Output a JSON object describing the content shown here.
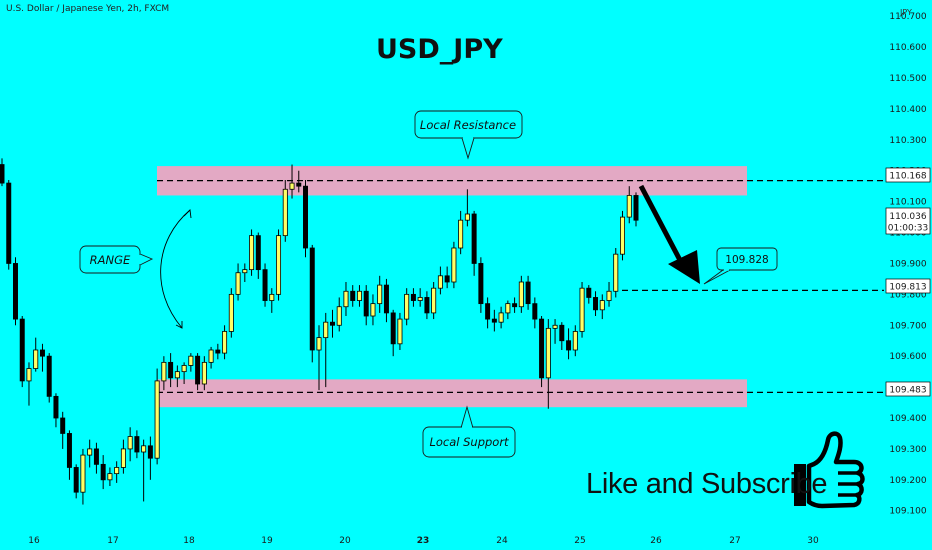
{
  "header": {
    "symbol_desc": "U.S. Dollar / Japanese Yen, 2h, FXCM",
    "currency": "JPY"
  },
  "title": "USD_JPY",
  "subscribe_text": "Like and Subscribe",
  "annotations": {
    "resistance_label": "Local Resistance",
    "support_label": "Local Support",
    "range_label": "RANGE",
    "target_label": "109.828"
  },
  "colors": {
    "background": "#00FFFF",
    "zone": "#E3A9C4",
    "candle_bull": "#FFFF66",
    "candle_bear": "#000000",
    "price_box": "#FFFFFF"
  },
  "price_axis": {
    "ticks": [
      "110.700",
      "110.600",
      "110.500",
      "110.400",
      "110.300",
      "110.200",
      "110.100",
      "110.000",
      "109.900",
      "109.800",
      "109.700",
      "109.600",
      "109.500",
      "109.400",
      "109.300",
      "109.200",
      "109.100"
    ],
    "labels": {
      "resistance": "110.168",
      "current": "110.036",
      "countdown": "01:00:33",
      "mid_level": "109.813",
      "support": "109.483"
    }
  },
  "time_axis": {
    "ticks": [
      "16",
      "17",
      "18",
      "19",
      "20",
      "23",
      "24",
      "25",
      "26",
      "27",
      "30"
    ],
    "bold": [
      "23"
    ]
  },
  "chart_data": {
    "type": "candlestick",
    "title": "USD_JPY",
    "symbol": "U.S. Dollar / Japanese Yen, 2h, FXCM",
    "ylim": [
      109.07,
      110.72
    ],
    "zones": {
      "resistance": [
        110.12,
        110.215
      ],
      "support": [
        109.435,
        109.525
      ]
    },
    "levels": {
      "resistance": 110.168,
      "support": 109.483,
      "mid": 109.813,
      "target": 109.828,
      "current": 110.036
    },
    "candles": [
      {
        "o": 110.22,
        "h": 110.24,
        "l": 110.15,
        "c": 110.16
      },
      {
        "o": 110.16,
        "h": 110.17,
        "l": 109.88,
        "c": 109.9
      },
      {
        "o": 109.9,
        "h": 109.92,
        "l": 109.7,
        "c": 109.72
      },
      {
        "o": 109.72,
        "h": 109.73,
        "l": 109.5,
        "c": 109.52
      },
      {
        "o": 109.52,
        "h": 109.58,
        "l": 109.44,
        "c": 109.56
      },
      {
        "o": 109.56,
        "h": 109.66,
        "l": 109.55,
        "c": 109.62
      },
      {
        "o": 109.62,
        "h": 109.64,
        "l": 109.55,
        "c": 109.6
      },
      {
        "o": 109.6,
        "h": 109.61,
        "l": 109.45,
        "c": 109.47
      },
      {
        "o": 109.47,
        "h": 109.48,
        "l": 109.37,
        "c": 109.4
      },
      {
        "o": 109.4,
        "h": 109.42,
        "l": 109.3,
        "c": 109.35
      },
      {
        "o": 109.35,
        "h": 109.36,
        "l": 109.2,
        "c": 109.24
      },
      {
        "o": 109.24,
        "h": 109.25,
        "l": 109.14,
        "c": 109.16
      },
      {
        "o": 109.16,
        "h": 109.3,
        "l": 109.12,
        "c": 109.28
      },
      {
        "o": 109.28,
        "h": 109.33,
        "l": 109.24,
        "c": 109.3
      },
      {
        "o": 109.3,
        "h": 109.32,
        "l": 109.22,
        "c": 109.25
      },
      {
        "o": 109.25,
        "h": 109.28,
        "l": 109.17,
        "c": 109.2
      },
      {
        "o": 109.2,
        "h": 109.24,
        "l": 109.18,
        "c": 109.22
      },
      {
        "o": 109.22,
        "h": 109.26,
        "l": 109.19,
        "c": 109.24
      },
      {
        "o": 109.24,
        "h": 109.33,
        "l": 109.22,
        "c": 109.3
      },
      {
        "o": 109.3,
        "h": 109.37,
        "l": 109.26,
        "c": 109.34
      },
      {
        "o": 109.34,
        "h": 109.36,
        "l": 109.27,
        "c": 109.29
      },
      {
        "o": 109.29,
        "h": 109.33,
        "l": 109.13,
        "c": 109.31
      },
      {
        "o": 109.31,
        "h": 109.34,
        "l": 109.2,
        "c": 109.27
      },
      {
        "o": 109.27,
        "h": 109.56,
        "l": 109.25,
        "c": 109.52
      },
      {
        "o": 109.52,
        "h": 109.6,
        "l": 109.49,
        "c": 109.58
      },
      {
        "o": 109.58,
        "h": 109.61,
        "l": 109.5,
        "c": 109.53
      },
      {
        "o": 109.53,
        "h": 109.57,
        "l": 109.5,
        "c": 109.55
      },
      {
        "o": 109.55,
        "h": 109.58,
        "l": 109.51,
        "c": 109.57
      },
      {
        "o": 109.57,
        "h": 109.61,
        "l": 109.55,
        "c": 109.6
      },
      {
        "o": 109.6,
        "h": 109.61,
        "l": 109.49,
        "c": 109.51
      },
      {
        "o": 109.51,
        "h": 109.6,
        "l": 109.49,
        "c": 109.58
      },
      {
        "o": 109.58,
        "h": 109.63,
        "l": 109.56,
        "c": 109.62
      },
      {
        "o": 109.62,
        "h": 109.64,
        "l": 109.59,
        "c": 109.61
      },
      {
        "o": 109.61,
        "h": 109.7,
        "l": 109.59,
        "c": 109.68
      },
      {
        "o": 109.68,
        "h": 109.82,
        "l": 109.66,
        "c": 109.8
      },
      {
        "o": 109.8,
        "h": 109.9,
        "l": 109.78,
        "c": 109.87
      },
      {
        "o": 109.87,
        "h": 109.9,
        "l": 109.84,
        "c": 109.88
      },
      {
        "o": 109.88,
        "h": 110.01,
        "l": 109.86,
        "c": 109.99
      },
      {
        "o": 109.99,
        "h": 110.0,
        "l": 109.85,
        "c": 109.88
      },
      {
        "o": 109.88,
        "h": 109.9,
        "l": 109.76,
        "c": 109.78
      },
      {
        "o": 109.78,
        "h": 109.82,
        "l": 109.74,
        "c": 109.8
      },
      {
        "o": 109.8,
        "h": 110.01,
        "l": 109.78,
        "c": 109.99
      },
      {
        "o": 109.99,
        "h": 110.17,
        "l": 109.97,
        "c": 110.14
      },
      {
        "o": 110.14,
        "h": 110.22,
        "l": 110.11,
        "c": 110.16
      },
      {
        "o": 110.16,
        "h": 110.2,
        "l": 110.13,
        "c": 110.15
      },
      {
        "o": 110.15,
        "h": 110.17,
        "l": 109.92,
        "c": 109.95
      },
      {
        "o": 109.95,
        "h": 109.96,
        "l": 109.58,
        "c": 109.62
      },
      {
        "o": 109.62,
        "h": 109.7,
        "l": 109.49,
        "c": 109.66
      },
      {
        "o": 109.66,
        "h": 109.74,
        "l": 109.5,
        "c": 109.71
      },
      {
        "o": 109.71,
        "h": 109.75,
        "l": 109.66,
        "c": 109.7
      },
      {
        "o": 109.7,
        "h": 109.79,
        "l": 109.68,
        "c": 109.76
      },
      {
        "o": 109.76,
        "h": 109.84,
        "l": 109.73,
        "c": 109.81
      },
      {
        "o": 109.81,
        "h": 109.83,
        "l": 109.76,
        "c": 109.78
      },
      {
        "o": 109.78,
        "h": 109.83,
        "l": 109.76,
        "c": 109.81
      },
      {
        "o": 109.81,
        "h": 109.83,
        "l": 109.7,
        "c": 109.73
      },
      {
        "o": 109.73,
        "h": 109.8,
        "l": 109.7,
        "c": 109.77
      },
      {
        "o": 109.77,
        "h": 109.86,
        "l": 109.74,
        "c": 109.83
      },
      {
        "o": 109.83,
        "h": 109.85,
        "l": 109.71,
        "c": 109.74
      },
      {
        "o": 109.74,
        "h": 109.75,
        "l": 109.6,
        "c": 109.64
      },
      {
        "o": 109.64,
        "h": 109.74,
        "l": 109.62,
        "c": 109.72
      },
      {
        "o": 109.72,
        "h": 109.82,
        "l": 109.7,
        "c": 109.8
      },
      {
        "o": 109.8,
        "h": 109.82,
        "l": 109.76,
        "c": 109.78
      },
      {
        "o": 109.78,
        "h": 109.82,
        "l": 109.76,
        "c": 109.79
      },
      {
        "o": 109.79,
        "h": 109.81,
        "l": 109.72,
        "c": 109.74
      },
      {
        "o": 109.74,
        "h": 109.84,
        "l": 109.72,
        "c": 109.82
      },
      {
        "o": 109.82,
        "h": 109.89,
        "l": 109.8,
        "c": 109.86
      },
      {
        "o": 109.86,
        "h": 109.89,
        "l": 109.82,
        "c": 109.84
      },
      {
        "o": 109.84,
        "h": 109.97,
        "l": 109.82,
        "c": 109.95
      },
      {
        "o": 109.95,
        "h": 110.07,
        "l": 109.93,
        "c": 110.04
      },
      {
        "o": 110.04,
        "h": 110.14,
        "l": 110.02,
        "c": 110.06
      },
      {
        "o": 110.06,
        "h": 110.07,
        "l": 109.86,
        "c": 109.9
      },
      {
        "o": 109.9,
        "h": 109.92,
        "l": 109.74,
        "c": 109.77
      },
      {
        "o": 109.77,
        "h": 109.79,
        "l": 109.69,
        "c": 109.72
      },
      {
        "o": 109.72,
        "h": 109.75,
        "l": 109.68,
        "c": 109.71
      },
      {
        "o": 109.71,
        "h": 109.76,
        "l": 109.69,
        "c": 109.74
      },
      {
        "o": 109.74,
        "h": 109.78,
        "l": 109.72,
        "c": 109.77
      },
      {
        "o": 109.77,
        "h": 109.79,
        "l": 109.74,
        "c": 109.76
      },
      {
        "o": 109.76,
        "h": 109.86,
        "l": 109.74,
        "c": 109.84
      },
      {
        "o": 109.84,
        "h": 109.86,
        "l": 109.75,
        "c": 109.77
      },
      {
        "o": 109.77,
        "h": 109.79,
        "l": 109.69,
        "c": 109.72
      },
      {
        "o": 109.72,
        "h": 109.73,
        "l": 109.5,
        "c": 109.53
      },
      {
        "o": 109.53,
        "h": 109.72,
        "l": 109.43,
        "c": 109.69
      },
      {
        "o": 109.69,
        "h": 109.72,
        "l": 109.64,
        "c": 109.7
      },
      {
        "o": 109.7,
        "h": 109.71,
        "l": 109.62,
        "c": 109.65
      },
      {
        "o": 109.65,
        "h": 109.69,
        "l": 109.59,
        "c": 109.62
      },
      {
        "o": 109.62,
        "h": 109.7,
        "l": 109.6,
        "c": 109.68
      },
      {
        "o": 109.68,
        "h": 109.84,
        "l": 109.66,
        "c": 109.82
      },
      {
        "o": 109.82,
        "h": 109.83,
        "l": 109.77,
        "c": 109.79
      },
      {
        "o": 109.79,
        "h": 109.81,
        "l": 109.73,
        "c": 109.75
      },
      {
        "o": 109.75,
        "h": 109.8,
        "l": 109.72,
        "c": 109.78
      },
      {
        "o": 109.78,
        "h": 109.84,
        "l": 109.76,
        "c": 109.81
      },
      {
        "o": 109.81,
        "h": 109.95,
        "l": 109.79,
        "c": 109.93
      },
      {
        "o": 109.93,
        "h": 110.07,
        "l": 109.91,
        "c": 110.05
      },
      {
        "o": 110.05,
        "h": 110.15,
        "l": 110.03,
        "c": 110.12
      },
      {
        "o": 110.12,
        "h": 110.13,
        "l": 110.02,
        "c": 110.04
      }
    ]
  }
}
